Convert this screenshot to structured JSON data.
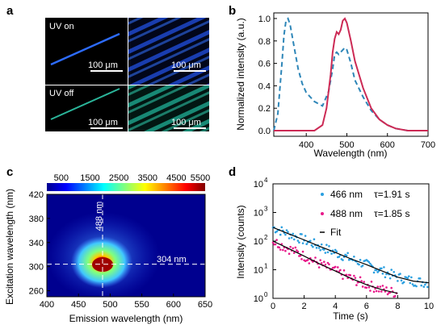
{
  "figure": {
    "panels": {
      "a": {
        "letter": "a",
        "labels": {
          "uv_on": "UV on",
          "uv_off": "UV off"
        },
        "scale_bar": "100 μm",
        "colors": {
          "uv_on": "#1f4fe0",
          "uv_off": "#22b59a",
          "background": "#000000"
        }
      },
      "b": {
        "letter": "b",
        "xlabel": "Wavelength (nm)",
        "ylabel": "Normalized intensity (a.u.)"
      },
      "c": {
        "letter": "c",
        "xlabel": "Emission wavelength (nm)",
        "ylabel": "Excitation wavelength (nm)",
        "colorbar_ticks": [
          "500",
          "1500",
          "2500",
          "3500",
          "4500",
          "5500"
        ],
        "annotations": {
          "vertical": "488 nm",
          "horizontal": "304 nm"
        }
      },
      "d": {
        "letter": "d",
        "xlabel": "Time (s)",
        "ylabel": "Intensity (counts)",
        "legend": [
          {
            "wavelength": "466 nm",
            "tau": "τ=1.91 s",
            "color": "#2a9fe0"
          },
          {
            "wavelength": "488 nm",
            "tau": "τ=1.85 s",
            "color": "#e8198a"
          },
          {
            "wavelength": "Fit",
            "tau": "",
            "color": "#000000"
          }
        ]
      }
    }
  },
  "chart_data": [
    {
      "panel": "b",
      "type": "line",
      "xlabel": "Wavelength (nm)",
      "ylabel": "Normalized intensity (a.u.)",
      "xlim": [
        320,
        700
      ],
      "ylim": [
        -0.05,
        1.05
      ],
      "xticks": [
        400,
        500,
        600,
        700
      ],
      "yticks": [
        0.0,
        0.2,
        0.4,
        0.6,
        0.8,
        1.0
      ],
      "series": [
        {
          "style": "dashed",
          "color": "#2e86b8",
          "x": [
            320,
            330,
            340,
            345,
            350,
            355,
            360,
            370,
            380,
            390,
            400,
            420,
            440,
            455,
            465,
            470,
            475,
            480,
            490,
            495,
            500,
            510,
            520,
            540,
            560,
            580,
            600,
            620,
            650,
            700
          ],
          "y": [
            0.0,
            0.15,
            0.6,
            0.85,
            0.98,
            1.0,
            0.95,
            0.75,
            0.55,
            0.42,
            0.34,
            0.26,
            0.22,
            0.35,
            0.55,
            0.68,
            0.7,
            0.68,
            0.72,
            0.74,
            0.72,
            0.6,
            0.45,
            0.3,
            0.18,
            0.1,
            0.05,
            0.02,
            0.0,
            0.0
          ]
        },
        {
          "style": "solid",
          "color": "#cc2a55",
          "x": [
            320,
            420,
            440,
            450,
            460,
            465,
            470,
            475,
            480,
            485,
            490,
            495,
            500,
            510,
            520,
            540,
            560,
            580,
            600,
            620,
            650,
            700
          ],
          "y": [
            0.0,
            0.0,
            0.05,
            0.2,
            0.5,
            0.7,
            0.82,
            0.88,
            0.86,
            0.9,
            0.98,
            1.0,
            0.96,
            0.8,
            0.62,
            0.38,
            0.2,
            0.1,
            0.05,
            0.02,
            0.0,
            0.0
          ]
        }
      ]
    },
    {
      "panel": "c",
      "type": "heatmap",
      "xlabel": "Emission wavelength (nm)",
      "ylabel": "Excitation wavelength (nm)",
      "xlim": [
        400,
        650
      ],
      "ylim": [
        250,
        420
      ],
      "xticks": [
        400,
        450,
        500,
        550,
        600,
        650
      ],
      "yticks": [
        260,
        300,
        340,
        380,
        420
      ],
      "colorbar": {
        "min": 0,
        "max": 5500,
        "ticks": [
          500,
          1500,
          2500,
          3500,
          4500,
          5500
        ]
      },
      "peak": {
        "emission": 488,
        "excitation": 304,
        "value": 5500
      },
      "guides": {
        "emission": 488,
        "excitation": 304
      }
    },
    {
      "panel": "d",
      "type": "scatter",
      "xlabel": "Time (s)",
      "ylabel": "Intensity (counts)",
      "xlim": [
        0,
        10
      ],
      "ylim": [
        1,
        10000
      ],
      "yscale": "log",
      "xticks": [
        0,
        2,
        4,
        6,
        8,
        10
      ],
      "yticks": [
        1,
        10,
        100,
        1000,
        10000
      ],
      "series": [
        {
          "name": "466 nm",
          "tau": 1.91,
          "color": "#2a9fe0",
          "x": [
            0,
            1,
            2,
            3,
            4,
            5,
            6,
            7,
            8,
            9,
            10
          ],
          "y": [
            300,
            180,
            110,
            65,
            40,
            24,
            15,
            9,
            5.5,
            4,
            3.5
          ]
        },
        {
          "name": "488 nm",
          "tau": 1.85,
          "color": "#e8198a",
          "x": [
            0,
            1,
            2,
            3,
            4,
            5,
            6,
            7,
            8
          ],
          "y": [
            100,
            55,
            30,
            16,
            9,
            5,
            3,
            2,
            1.5
          ]
        },
        {
          "name": "Fit",
          "color": "#000000",
          "x": [
            0,
            10
          ],
          "y": [
            300,
            3
          ]
        }
      ]
    }
  ]
}
